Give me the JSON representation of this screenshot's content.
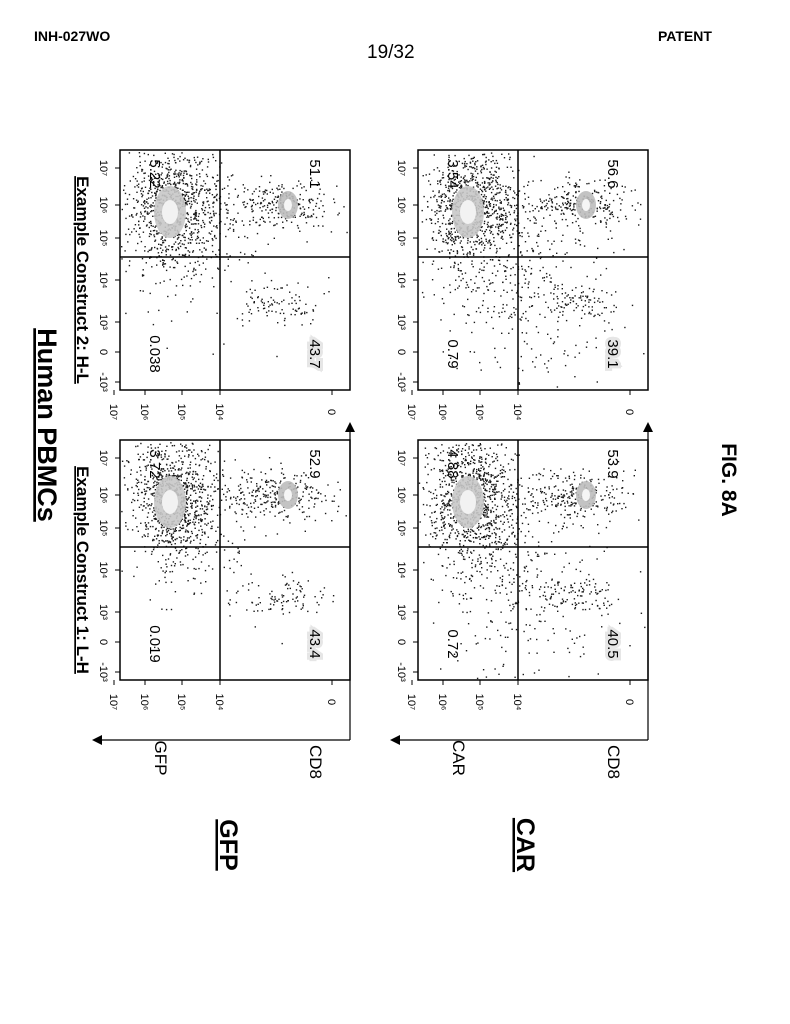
{
  "header": {
    "doc_id": "INH-027WO",
    "page_number": "19/32",
    "label": "PATENT"
  },
  "figure": {
    "title": "Human PBMCs",
    "caption": "FIG. 8A",
    "column_titles": [
      "Example Construct 1: L-H",
      "Example Construct 2: H-L"
    ],
    "row_labels": [
      "GFP",
      "CAR"
    ]
  },
  "chart_data": [
    {
      "type": "scatter",
      "row": "GFP",
      "construct": "Example Construct 1: L-H",
      "xlabel": "GFP",
      "ylabel": "CD8",
      "x_ticks": [
        "0",
        "10⁴",
        "10⁵",
        "10⁶",
        "10⁷"
      ],
      "y_ticks": [
        "-10³",
        "0",
        "10³",
        "10⁴",
        "10⁵",
        "10⁶",
        "10⁷"
      ],
      "gate": {
        "x": "10⁴",
        "y": "10⁴"
      },
      "quadrants": {
        "upper_left": "52.9",
        "upper_right": "3.72",
        "lower_left": "43.4",
        "lower_right": "0.019"
      }
    },
    {
      "type": "scatter",
      "row": "GFP",
      "construct": "Example Construct 2: H-L",
      "xlabel": "",
      "ylabel": "",
      "x_ticks": [
        "0",
        "10⁴",
        "10⁵",
        "10⁶",
        "10⁷"
      ],
      "y_ticks": [
        "-10³",
        "0",
        "10³",
        "10⁴",
        "10⁵",
        "10⁶",
        "10⁷"
      ],
      "gate": {
        "x": "10⁴",
        "y": "10⁴"
      },
      "quadrants": {
        "upper_left": "51.1",
        "upper_right": "5.22",
        "lower_left": "43.7",
        "lower_right": "0.038"
      }
    },
    {
      "type": "scatter",
      "row": "CAR",
      "construct": "Example Construct 1: L-H",
      "xlabel": "CAR",
      "ylabel": "CD8",
      "x_ticks": [
        "0",
        "10⁴",
        "10⁵",
        "10⁶",
        "10⁷"
      ],
      "y_ticks": [
        "-10³",
        "0",
        "10³",
        "10⁴",
        "10⁵",
        "10⁶",
        "10⁷"
      ],
      "gate": {
        "x": "10⁴",
        "y": "10⁴"
      },
      "quadrants": {
        "upper_left": "53.9",
        "upper_right": "4.88",
        "lower_left": "40.5",
        "lower_right": "0.72"
      }
    },
    {
      "type": "scatter",
      "row": "CAR",
      "construct": "Example Construct 2: H-L",
      "xlabel": "",
      "ylabel": "",
      "x_ticks": [
        "0",
        "10⁴",
        "10⁵",
        "10⁶",
        "10⁷"
      ],
      "y_ticks": [
        "-10³",
        "0",
        "10³",
        "10⁴",
        "10⁵",
        "10⁶",
        "10⁷"
      ],
      "gate": {
        "x": "10⁴",
        "y": "10⁴"
      },
      "quadrants": {
        "upper_left": "56.6",
        "upper_right": "3.54",
        "lower_left": "39.1",
        "lower_right": "0.79"
      }
    }
  ]
}
